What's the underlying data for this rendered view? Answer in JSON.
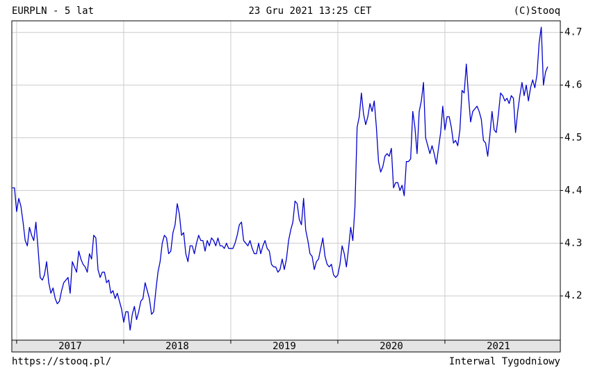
{
  "chart_data": {
    "type": "line",
    "title": "EURPLN - 5 lat",
    "subtitle": "23 Gru 2021 13:25 CET",
    "source": "(C)Stooq",
    "url": "https://stooq.pl/",
    "interval": "Interwal Tygodniowy",
    "color": "#0000cc",
    "grid": true,
    "xlim": [
      2016.955,
      2022.078
    ],
    "xticks": [
      2017,
      2018,
      2019,
      2020,
      2021
    ],
    "ylim": [
      4.116,
      4.722
    ],
    "yticks": [
      4.2,
      4.3,
      4.4,
      4.5,
      4.6,
      4.7
    ],
    "x": [
      2016.96,
      2016.98,
      2017,
      2017.02,
      2017.04,
      2017.06,
      2017.08,
      2017.1,
      2017.12,
      2017.14,
      2017.16,
      2017.18,
      2017.2,
      2017.22,
      2017.24,
      2017.26,
      2017.28,
      2017.3,
      2017.32,
      2017.34,
      2017.36,
      2017.38,
      2017.4,
      2017.42,
      2017.44,
      2017.46,
      2017.48,
      2017.5,
      2017.52,
      2017.54,
      2017.56,
      2017.58,
      2017.6,
      2017.62,
      2017.64,
      2017.66,
      2017.68,
      2017.7,
      2017.72,
      2017.74,
      2017.76,
      2017.78,
      2017.8,
      2017.82,
      2017.84,
      2017.86,
      2017.88,
      2017.9,
      2017.92,
      2017.94,
      2017.96,
      2017.98,
      2018,
      2018.02,
      2018.04,
      2018.06,
      2018.08,
      2018.1,
      2018.12,
      2018.14,
      2018.16,
      2018.18,
      2018.2,
      2018.22,
      2018.24,
      2018.26,
      2018.28,
      2018.3,
      2018.32,
      2018.34,
      2018.36,
      2018.38,
      2018.4,
      2018.42,
      2018.44,
      2018.46,
      2018.48,
      2018.5,
      2018.52,
      2018.54,
      2018.56,
      2018.58,
      2018.6,
      2018.62,
      2018.64,
      2018.66,
      2018.68,
      2018.7,
      2018.72,
      2018.74,
      2018.76,
      2018.78,
      2018.8,
      2018.82,
      2018.84,
      2018.86,
      2018.88,
      2018.9,
      2018.92,
      2018.94,
      2018.96,
      2018.98,
      2019,
      2019.02,
      2019.04,
      2019.06,
      2019.08,
      2019.1,
      2019.12,
      2019.14,
      2019.16,
      2019.18,
      2019.2,
      2019.22,
      2019.24,
      2019.26,
      2019.28,
      2019.3,
      2019.32,
      2019.34,
      2019.36,
      2019.38,
      2019.4,
      2019.42,
      2019.44,
      2019.46,
      2019.48,
      2019.5,
      2019.52,
      2019.54,
      2019.56,
      2019.58,
      2019.6,
      2019.62,
      2019.64,
      2019.66,
      2019.68,
      2019.7,
      2019.72,
      2019.74,
      2019.76,
      2019.78,
      2019.8,
      2019.82,
      2019.84,
      2019.86,
      2019.88,
      2019.9,
      2019.92,
      2019.94,
      2019.96,
      2019.98,
      2020,
      2020.02,
      2020.04,
      2020.06,
      2020.08,
      2020.1,
      2020.12,
      2020.14,
      2020.16,
      2020.18,
      2020.2,
      2020.22,
      2020.24,
      2020.26,
      2020.28,
      2020.3,
      2020.32,
      2020.34,
      2020.36,
      2020.38,
      2020.4,
      2020.42,
      2020.44,
      2020.46,
      2020.48,
      2020.5,
      2020.52,
      2020.54,
      2020.56,
      2020.58,
      2020.6,
      2020.62,
      2020.64,
      2020.66,
      2020.68,
      2020.7,
      2020.72,
      2020.74,
      2020.76,
      2020.78,
      2020.8,
      2020.82,
      2020.84,
      2020.86,
      2020.88,
      2020.9,
      2020.92,
      2020.94,
      2020.96,
      2020.98,
      2021,
      2021.02,
      2021.04,
      2021.06,
      2021.08,
      2021.1,
      2021.12,
      2021.14,
      2021.16,
      2021.18,
      2021.2,
      2021.22,
      2021.24,
      2021.26,
      2021.28,
      2021.3,
      2021.32,
      2021.34,
      2021.36,
      2021.38,
      2021.4,
      2021.42,
      2021.44,
      2021.46,
      2021.48,
      2021.5,
      2021.52,
      2021.54,
      2021.56,
      2021.58,
      2021.6,
      2021.62,
      2021.64,
      2021.66,
      2021.68,
      2021.7,
      2021.72,
      2021.74,
      2021.76,
      2021.78,
      2021.8,
      2021.82,
      2021.84,
      2021.86,
      2021.88,
      2021.9,
      2021.92,
      2021.94,
      2021.96
    ],
    "values": [
      4.405,
      4.405,
      4.36,
      4.385,
      4.37,
      4.34,
      4.305,
      4.295,
      4.33,
      4.315,
      4.305,
      4.34,
      4.29,
      4.235,
      4.23,
      4.24,
      4.265,
      4.225,
      4.205,
      4.215,
      4.195,
      4.185,
      4.19,
      4.21,
      4.225,
      4.23,
      4.235,
      4.205,
      4.265,
      4.255,
      4.245,
      4.285,
      4.27,
      4.26,
      4.255,
      4.245,
      4.28,
      4.27,
      4.315,
      4.31,
      4.25,
      4.235,
      4.245,
      4.245,
      4.225,
      4.23,
      4.205,
      4.21,
      4.195,
      4.205,
      4.19,
      4.175,
      4.15,
      4.17,
      4.17,
      4.135,
      4.165,
      4.18,
      4.155,
      4.17,
      4.19,
      4.195,
      4.225,
      4.21,
      4.195,
      4.165,
      4.17,
      4.21,
      4.245,
      4.265,
      4.3,
      4.315,
      4.31,
      4.28,
      4.285,
      4.32,
      4.335,
      4.375,
      4.355,
      4.315,
      4.32,
      4.28,
      4.265,
      4.295,
      4.295,
      4.28,
      4.3,
      4.315,
      4.305,
      4.305,
      4.285,
      4.305,
      4.295,
      4.31,
      4.305,
      4.295,
      4.31,
      4.295,
      4.295,
      4.29,
      4.3,
      4.29,
      4.29,
      4.29,
      4.3,
      4.315,
      4.335,
      4.34,
      4.305,
      4.3,
      4.295,
      4.305,
      4.29,
      4.28,
      4.28,
      4.3,
      4.28,
      4.295,
      4.305,
      4.29,
      4.285,
      4.26,
      4.255,
      4.255,
      4.245,
      4.25,
      4.27,
      4.25,
      4.27,
      4.305,
      4.325,
      4.34,
      4.38,
      4.375,
      4.345,
      4.335,
      4.385,
      4.325,
      4.305,
      4.28,
      4.275,
      4.25,
      4.265,
      4.27,
      4.29,
      4.31,
      4.275,
      4.26,
      4.255,
      4.26,
      4.24,
      4.235,
      4.24,
      4.26,
      4.295,
      4.28,
      4.255,
      4.29,
      4.33,
      4.305,
      4.37,
      4.52,
      4.54,
      4.585,
      4.545,
      4.525,
      4.54,
      4.565,
      4.55,
      4.57,
      4.52,
      4.455,
      4.435,
      4.445,
      4.465,
      4.47,
      4.465,
      4.48,
      4.405,
      4.415,
      4.415,
      4.4,
      4.41,
      4.39,
      4.455,
      4.455,
      4.46,
      4.55,
      4.52,
      4.47,
      4.55,
      4.57,
      4.605,
      4.5,
      4.485,
      4.47,
      4.485,
      4.47,
      4.45,
      4.48,
      4.51,
      4.56,
      4.515,
      4.54,
      4.54,
      4.52,
      4.49,
      4.495,
      4.485,
      4.515,
      4.59,
      4.585,
      4.64,
      4.58,
      4.53,
      4.55,
      4.555,
      4.56,
      4.55,
      4.535,
      4.495,
      4.49,
      4.465,
      4.505,
      4.55,
      4.515,
      4.51,
      4.545,
      4.585,
      4.58,
      4.57,
      4.575,
      4.565,
      4.58,
      4.575,
      4.51,
      4.55,
      4.58,
      4.605,
      4.58,
      4.6,
      4.57,
      4.595,
      4.61,
      4.595,
      4.62,
      4.68,
      4.71,
      4.6,
      4.625,
      4.635
    ]
  }
}
